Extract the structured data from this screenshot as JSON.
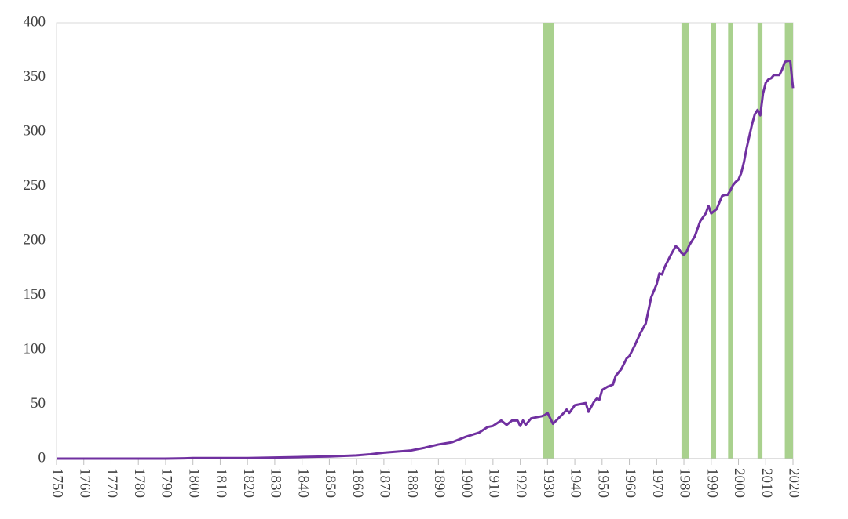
{
  "chart_data": {
    "type": "line",
    "x": [
      1750,
      1760,
      1770,
      1780,
      1790,
      1797,
      1800,
      1810,
      1820,
      1830,
      1840,
      1850,
      1860,
      1865,
      1870,
      1875,
      1880,
      1885,
      1890,
      1895,
      1900,
      1905,
      1908,
      1910,
      1913,
      1915,
      1917,
      1919,
      1920,
      1921,
      1922,
      1924,
      1926,
      1928,
      1929,
      1930,
      1932,
      1934,
      1936,
      1937,
      1938,
      1940,
      1942,
      1944,
      1945,
      1947,
      1948,
      1949,
      1950,
      1952,
      1954,
      1955,
      1957,
      1959,
      1960,
      1962,
      1964,
      1966,
      1968,
      1970,
      1971,
      1972,
      1973,
      1975,
      1977,
      1978,
      1979,
      1980,
      1981,
      1982,
      1983,
      1984,
      1986,
      1988,
      1989,
      1990,
      1991,
      1992,
      1993,
      1994,
      1995,
      1996,
      1997,
      1998,
      1999,
      2000,
      2001,
      2002,
      2003,
      2004,
      2005,
      2006,
      2007,
      2008,
      2009,
      2010,
      2011,
      2012,
      2013,
      2014,
      2015,
      2016,
      2017,
      2018,
      2019,
      2020
    ],
    "series": [
      {
        "color": "#7030a0",
        "values": [
          0,
          0,
          0,
          0,
          0,
          0.3,
          0.5,
          0.5,
          0.5,
          1,
          1.5,
          2,
          3,
          4,
          5.5,
          6.5,
          7.5,
          10,
          13,
          15,
          20,
          24,
          29,
          30,
          35,
          31,
          35,
          35,
          30,
          35,
          31,
          37,
          38,
          39,
          40,
          42,
          32,
          37,
          42,
          45,
          42,
          49,
          50,
          51,
          43,
          52,
          55,
          54,
          63,
          66,
          68,
          76,
          82,
          92,
          94,
          104,
          115,
          124,
          148,
          160,
          170,
          169,
          176,
          186,
          195,
          193,
          189,
          187,
          190,
          196,
          200,
          204,
          218,
          225,
          232,
          225,
          227,
          229,
          235,
          241,
          242,
          242,
          246,
          251,
          254,
          256,
          262,
          272,
          285,
          296,
          307,
          316,
          320,
          315,
          335,
          345,
          348,
          349,
          352,
          352,
          352,
          357,
          364,
          365,
          365,
          340
        ]
      }
    ],
    "bands": [
      [
        1928.3,
        1932.3
      ],
      [
        1979.1,
        1982
      ],
      [
        1990,
        1991.8
      ],
      [
        1996.2,
        1998
      ],
      [
        2007,
        2008.8
      ],
      [
        2017,
        2020
      ]
    ],
    "band_color": "#a9d18e",
    "xlim": [
      1750,
      2020
    ],
    "ylim": [
      0,
      400
    ],
    "xticks": [
      1750,
      1760,
      1770,
      1780,
      1790,
      1800,
      1810,
      1820,
      1830,
      1840,
      1850,
      1860,
      1870,
      1880,
      1890,
      1900,
      1910,
      1920,
      1930,
      1940,
      1950,
      1960,
      1970,
      1980,
      1990,
      2000,
      2010,
      2020
    ],
    "yticks": [
      0,
      50,
      100,
      150,
      200,
      250,
      300,
      350,
      400
    ]
  }
}
